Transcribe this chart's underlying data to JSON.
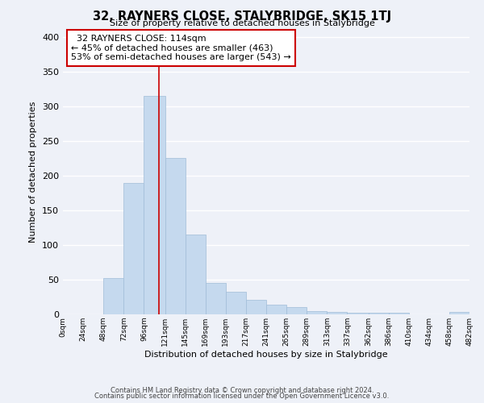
{
  "title": "32, RAYNERS CLOSE, STALYBRIDGE, SK15 1TJ",
  "subtitle": "Size of property relative to detached houses in Stalybridge",
  "xlabel": "Distribution of detached houses by size in Stalybridge",
  "ylabel": "Number of detached properties",
  "bar_color": "#c5d9ee",
  "bar_edge_color": "#a0bcd8",
  "background_color": "#eef1f8",
  "grid_color": "#ffffff",
  "bin_edges": [
    0,
    24,
    48,
    72,
    96,
    121,
    145,
    169,
    193,
    217,
    241,
    265,
    289,
    313,
    337,
    362,
    386,
    410,
    434,
    458,
    482
  ],
  "bin_labels": [
    "0sqm",
    "24sqm",
    "48sqm",
    "72sqm",
    "96sqm",
    "121sqm",
    "145sqm",
    "169sqm",
    "193sqm",
    "217sqm",
    "241sqm",
    "265sqm",
    "289sqm",
    "313sqm",
    "337sqm",
    "362sqm",
    "386sqm",
    "410sqm",
    "434sqm",
    "458sqm",
    "482sqm"
  ],
  "counts": [
    0,
    0,
    52,
    190,
    315,
    226,
    115,
    45,
    33,
    21,
    14,
    10,
    5,
    3,
    2,
    2,
    2,
    0,
    0,
    4
  ],
  "property_label": "32 RAYNERS CLOSE: 114sqm",
  "pct_smaller": 45,
  "n_smaller": 463,
  "pct_larger_semi": 53,
  "n_larger_semi": 543,
  "vline_x": 114,
  "vline_color": "#cc0000",
  "annotation_box_color": "#ffffff",
  "annotation_box_edge": "#cc0000",
  "ylim": [
    0,
    410
  ],
  "yticks": [
    0,
    50,
    100,
    150,
    200,
    250,
    300,
    350,
    400
  ],
  "footer1": "Contains HM Land Registry data © Crown copyright and database right 2024.",
  "footer2": "Contains public sector information licensed under the Open Government Licence v3.0."
}
